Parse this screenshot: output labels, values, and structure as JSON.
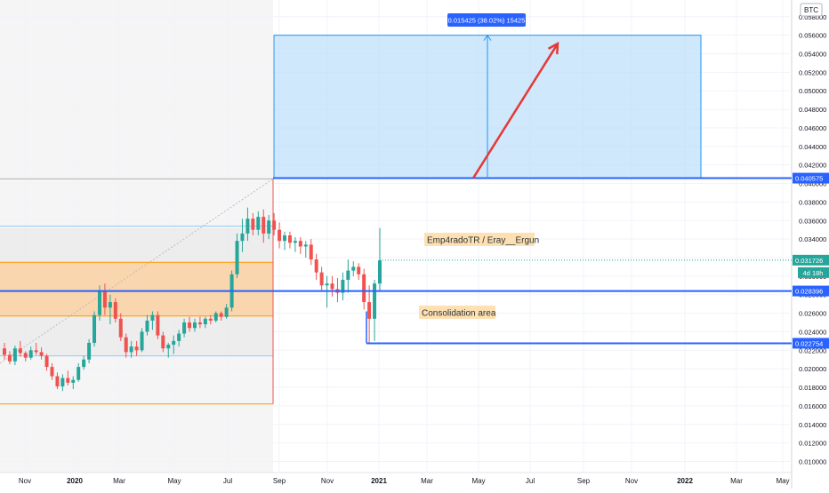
{
  "currency_label": "BTC",
  "countdown": "4d 18h",
  "annotations": {
    "author": "Emp4radoTR / Eray__Ergun",
    "consolidation": "Consolidation area",
    "target_box_label": "0.015425 (38.02%) 15425"
  },
  "price_tags": {
    "resistance": "0.040575",
    "current": "0.031726",
    "support_upper": "0.028396",
    "support_lower": "0.022754"
  },
  "colors": {
    "up": "#26a69a",
    "down": "#ef5350",
    "level_line": "#2962ff",
    "target_box": "#bbdefb",
    "orange_zone": "#fbd1a2",
    "arrow": "#e53935",
    "tag_bg": "#2962ff",
    "current_tag": "#26a69a"
  },
  "chart_data": {
    "type": "candlestick",
    "title": "",
    "xlabel": "",
    "ylabel": "",
    "y_axis_position": "right",
    "y_ticks": [
      "0.010000",
      "0.012000",
      "0.014000",
      "0.016000",
      "0.018000",
      "0.020000",
      "0.022000",
      "0.024000",
      "0.026000",
      "0.028000",
      "0.030000",
      "0.032000",
      "0.034000",
      "0.036000",
      "0.038000",
      "0.040000",
      "0.042000",
      "0.044000",
      "0.046000",
      "0.048000",
      "0.050000",
      "0.052000",
      "0.054000",
      "0.056000",
      "0.058000"
    ],
    "x_ticks": [
      "Nov",
      "2020",
      "Mar",
      "May",
      "Jul",
      "Sep",
      "Nov",
      "2021",
      "Mar",
      "May",
      "Jul",
      "Sep",
      "Nov",
      "2022",
      "Mar",
      "May"
    ],
    "ylim": [
      0.0088,
      0.0598
    ],
    "levels": {
      "resistance": 0.040575,
      "current": 0.031726,
      "support_upper": 0.028396,
      "support_lower": 0.022754,
      "target": 0.056,
      "gray_range_top": 0.0352,
      "gray_range_bottom": 0.0214,
      "gray_range_high": 0.0405,
      "gray_range_low": 0.0162,
      "orange_zone_top": 0.0315,
      "orange_zone_bottom": 0.0257
    },
    "candles": [
      [
        0.0222,
        0.0228,
        0.021,
        0.0215
      ],
      [
        0.0215,
        0.0219,
        0.0205,
        0.0208
      ],
      [
        0.0208,
        0.0225,
        0.0204,
        0.0222
      ],
      [
        0.0222,
        0.023,
        0.0213,
        0.0217
      ],
      [
        0.0217,
        0.0219,
        0.0208,
        0.0212
      ],
      [
        0.0212,
        0.0224,
        0.021,
        0.022
      ],
      [
        0.022,
        0.0228,
        0.0215,
        0.0218
      ],
      [
        0.0218,
        0.0223,
        0.021,
        0.0214
      ],
      [
        0.0214,
        0.0216,
        0.0198,
        0.0202
      ],
      [
        0.0202,
        0.0206,
        0.0188,
        0.0192
      ],
      [
        0.0192,
        0.0196,
        0.0178,
        0.0181
      ],
      [
        0.0181,
        0.0194,
        0.0176,
        0.019
      ],
      [
        0.019,
        0.0198,
        0.0182,
        0.0185
      ],
      [
        0.0185,
        0.0192,
        0.0178,
        0.0188
      ],
      [
        0.0188,
        0.0206,
        0.0186,
        0.0202
      ],
      [
        0.0202,
        0.0214,
        0.0199,
        0.021
      ],
      [
        0.021,
        0.0232,
        0.0206,
        0.0228
      ],
      [
        0.0228,
        0.0262,
        0.0224,
        0.0258
      ],
      [
        0.0258,
        0.029,
        0.0252,
        0.0284
      ],
      [
        0.0284,
        0.0292,
        0.0258,
        0.0266
      ],
      [
        0.0266,
        0.028,
        0.0248,
        0.0272
      ],
      [
        0.0272,
        0.0276,
        0.025,
        0.0254
      ],
      [
        0.0254,
        0.026,
        0.023,
        0.0234
      ],
      [
        0.0234,
        0.0238,
        0.0212,
        0.0218
      ],
      [
        0.0218,
        0.023,
        0.0212,
        0.0224
      ],
      [
        0.0224,
        0.023,
        0.0214,
        0.022
      ],
      [
        0.022,
        0.0244,
        0.0218,
        0.024
      ],
      [
        0.024,
        0.0258,
        0.0236,
        0.0252
      ],
      [
        0.0252,
        0.0262,
        0.0242,
        0.0258
      ],
      [
        0.0258,
        0.0262,
        0.0232,
        0.0236
      ],
      [
        0.0236,
        0.024,
        0.0218,
        0.0222
      ],
      [
        0.0222,
        0.0228,
        0.0212,
        0.0226
      ],
      [
        0.0226,
        0.0236,
        0.0216,
        0.023
      ],
      [
        0.023,
        0.0242,
        0.0224,
        0.0238
      ],
      [
        0.0238,
        0.0254,
        0.0234,
        0.025
      ],
      [
        0.025,
        0.0256,
        0.024,
        0.0244
      ],
      [
        0.0244,
        0.0254,
        0.024,
        0.025
      ],
      [
        0.025,
        0.0256,
        0.0244,
        0.0248
      ],
      [
        0.0248,
        0.0256,
        0.0244,
        0.0254
      ],
      [
        0.0254,
        0.0258,
        0.0248,
        0.0252
      ],
      [
        0.0252,
        0.0262,
        0.025,
        0.026
      ],
      [
        0.026,
        0.0262,
        0.0252,
        0.0256
      ],
      [
        0.0256,
        0.027,
        0.0254,
        0.0266
      ],
      [
        0.0266,
        0.0306,
        0.0262,
        0.0302
      ],
      [
        0.0302,
        0.0346,
        0.0298,
        0.0338
      ],
      [
        0.0338,
        0.0362,
        0.0326,
        0.0346
      ],
      [
        0.0346,
        0.0374,
        0.0338,
        0.0362
      ],
      [
        0.0362,
        0.0368,
        0.0344,
        0.035
      ],
      [
        0.035,
        0.037,
        0.0344,
        0.0364
      ],
      [
        0.0364,
        0.0372,
        0.0336,
        0.0346
      ],
      [
        0.0346,
        0.0366,
        0.034,
        0.036
      ],
      [
        0.036,
        0.0368,
        0.0344,
        0.035
      ],
      [
        0.035,
        0.0358,
        0.033,
        0.0338
      ],
      [
        0.0338,
        0.0348,
        0.0328,
        0.0344
      ],
      [
        0.0344,
        0.0348,
        0.033,
        0.0336
      ],
      [
        0.0336,
        0.0342,
        0.0326,
        0.0338
      ],
      [
        0.0338,
        0.0342,
        0.0324,
        0.0332
      ],
      [
        0.0332,
        0.0338,
        0.032,
        0.0334
      ],
      [
        0.0334,
        0.034,
        0.0312,
        0.0318
      ],
      [
        0.0318,
        0.0324,
        0.0296,
        0.0304
      ],
      [
        0.0304,
        0.031,
        0.0284,
        0.029
      ],
      [
        0.029,
        0.03,
        0.0266,
        0.0292
      ],
      [
        0.0292,
        0.03,
        0.0278,
        0.0286
      ],
      [
        0.0286,
        0.0298,
        0.0272,
        0.0282
      ],
      [
        0.0282,
        0.0304,
        0.0274,
        0.0296
      ],
      [
        0.0296,
        0.0318,
        0.0282,
        0.0306
      ],
      [
        0.0306,
        0.0316,
        0.03,
        0.031
      ],
      [
        0.031,
        0.0314,
        0.0296,
        0.0302
      ],
      [
        0.0302,
        0.0308,
        0.0264,
        0.0272
      ],
      [
        0.0272,
        0.029,
        0.0228,
        0.0254
      ],
      [
        0.0254,
        0.0296,
        0.023,
        0.0292
      ],
      [
        0.0292,
        0.0352,
        0.0284,
        0.0317
      ]
    ]
  }
}
